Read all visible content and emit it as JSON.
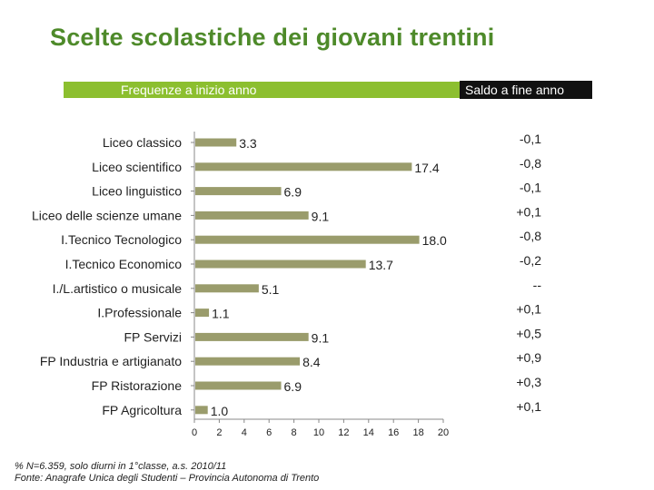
{
  "title": "Scelte scolastiche dei giovani trentini",
  "header": {
    "left_label": "Frequenze a inizio anno",
    "right_label": "Saldo a fine anno"
  },
  "notes": {
    "line1": "% N=6.359, solo diurni in 1°classe, a.s. 2010/11",
    "line2": "Fonte: Anagrafe Unica degli Studenti – Provincia Autonoma di Trento"
  },
  "colors": {
    "title": "#4e8a2a",
    "header_bar": "#8cbf2f",
    "bar": "#9a9c6c"
  },
  "chart_data": {
    "type": "bar",
    "orientation": "horizontal",
    "categories": [
      "Liceo classico",
      "Liceo scientifico",
      "Liceo linguistico",
      "Liceo delle scienze umane",
      "I.Tecnico Tecnologico",
      "I.Tecnico Economico",
      "I./L.artistico o musicale",
      "I.Professionale",
      "FP Servizi",
      "FP Industria e artigianato",
      "FP Ristorazione",
      "FP Agricoltura"
    ],
    "values": [
      3.3,
      17.4,
      6.9,
      9.1,
      18.0,
      13.7,
      5.1,
      1.1,
      9.1,
      8.4,
      6.9,
      1.0
    ],
    "value_labels": [
      "3.3",
      "17.4",
      "6.9",
      "9.1",
      "18.0",
      "13.7",
      "5.1",
      "1.1",
      "9.1",
      "8.4",
      "6.9",
      "1.0"
    ],
    "saldo": [
      "-0,1",
      "-0,8",
      "-0,1",
      "+0,1",
      "-0,8",
      "-0,2",
      "--",
      "+0,1",
      "+0,5",
      "+0,9",
      "+0,3",
      "+0,1"
    ],
    "xlim": [
      0,
      20
    ],
    "xticks": [
      0,
      2,
      4,
      6,
      8,
      10,
      12,
      14,
      16,
      18,
      20
    ],
    "grid": false
  }
}
